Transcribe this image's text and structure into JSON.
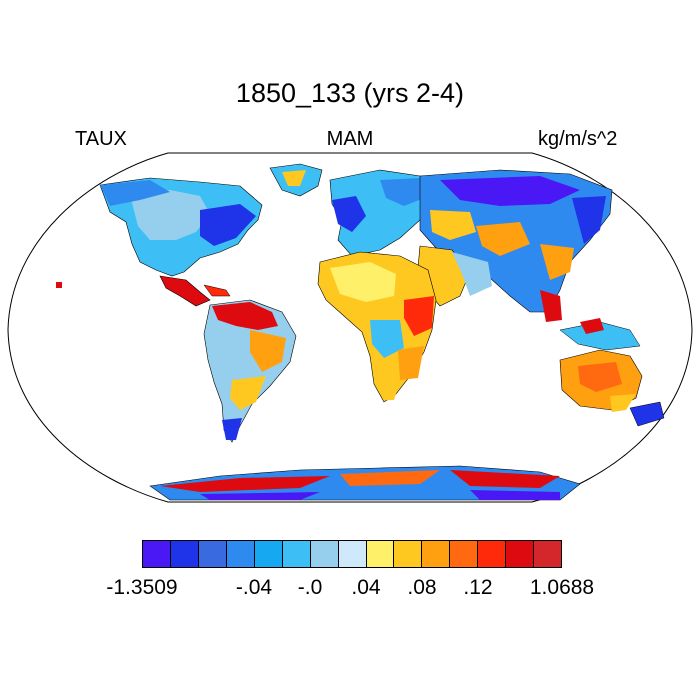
{
  "title": "1850_133 (yrs 2-4)",
  "left_label": "TAUX",
  "center_label": "MAM",
  "right_label": "kg/m/s^2",
  "colorbar": {
    "colors": [
      "#4a17f5",
      "#1f33e8",
      "#3a6ae0",
      "#2f8af0",
      "#17a8f2",
      "#3dbff5",
      "#96cfee",
      "#cfe9fa",
      "#fff06a",
      "#ffc820",
      "#ffa010",
      "#ff6a10",
      "#ff2a0a",
      "#dd0a10",
      "#d4272b"
    ],
    "tick_labels": [
      "-1.3509",
      "-.04",
      "-.0",
      ".04",
      ".08",
      ".12",
      "1.0688"
    ]
  },
  "map_legend": {
    "projection": "robinson",
    "variable": "TAUX",
    "season": "MAM",
    "units": "kg/m/s^2",
    "min": -1.3509,
    "max": 1.0688
  }
}
